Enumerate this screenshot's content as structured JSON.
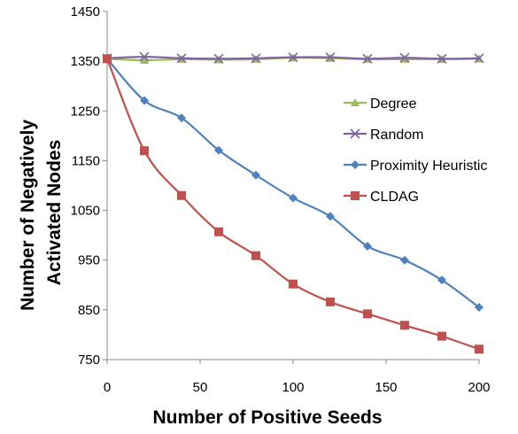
{
  "chart_data": {
    "type": "line",
    "title": "",
    "xlabel": "Number of Positive Seeds",
    "ylabel_lines": [
      "Number of Negatively",
      "Activated Nodes"
    ],
    "xlim": [
      0,
      200
    ],
    "ylim": [
      750,
      1450
    ],
    "x_ticks": [
      0,
      50,
      100,
      150,
      200
    ],
    "y_ticks": [
      750,
      850,
      950,
      1050,
      1150,
      1250,
      1350,
      1450
    ],
    "grid": false,
    "legend_position": "right",
    "x": [
      0,
      20,
      40,
      60,
      80,
      100,
      120,
      140,
      160,
      180,
      200
    ],
    "series": [
      {
        "name": "Degree",
        "marker": "triangle",
        "color": "#9bbb59",
        "values": [
          1355,
          1352,
          1354,
          1353,
          1354,
          1357,
          1356,
          1354,
          1354,
          1354,
          1355
        ]
      },
      {
        "name": "Random",
        "marker": "x",
        "color": "#8064a2",
        "values": [
          1356,
          1359,
          1356,
          1355,
          1356,
          1358,
          1358,
          1355,
          1357,
          1355,
          1356
        ]
      },
      {
        "name": "Proximity Heuristic",
        "marker": "diamond",
        "color": "#4f81bd",
        "values": [
          1355,
          1271,
          1236,
          1171,
          1121,
          1075,
          1038,
          978,
          950,
          910,
          855
        ]
      },
      {
        "name": "CLDAG",
        "marker": "square",
        "color": "#c0504d",
        "values": [
          1355,
          1170,
          1080,
          1007,
          959,
          902,
          866,
          842,
          819,
          797,
          771
        ]
      }
    ]
  }
}
